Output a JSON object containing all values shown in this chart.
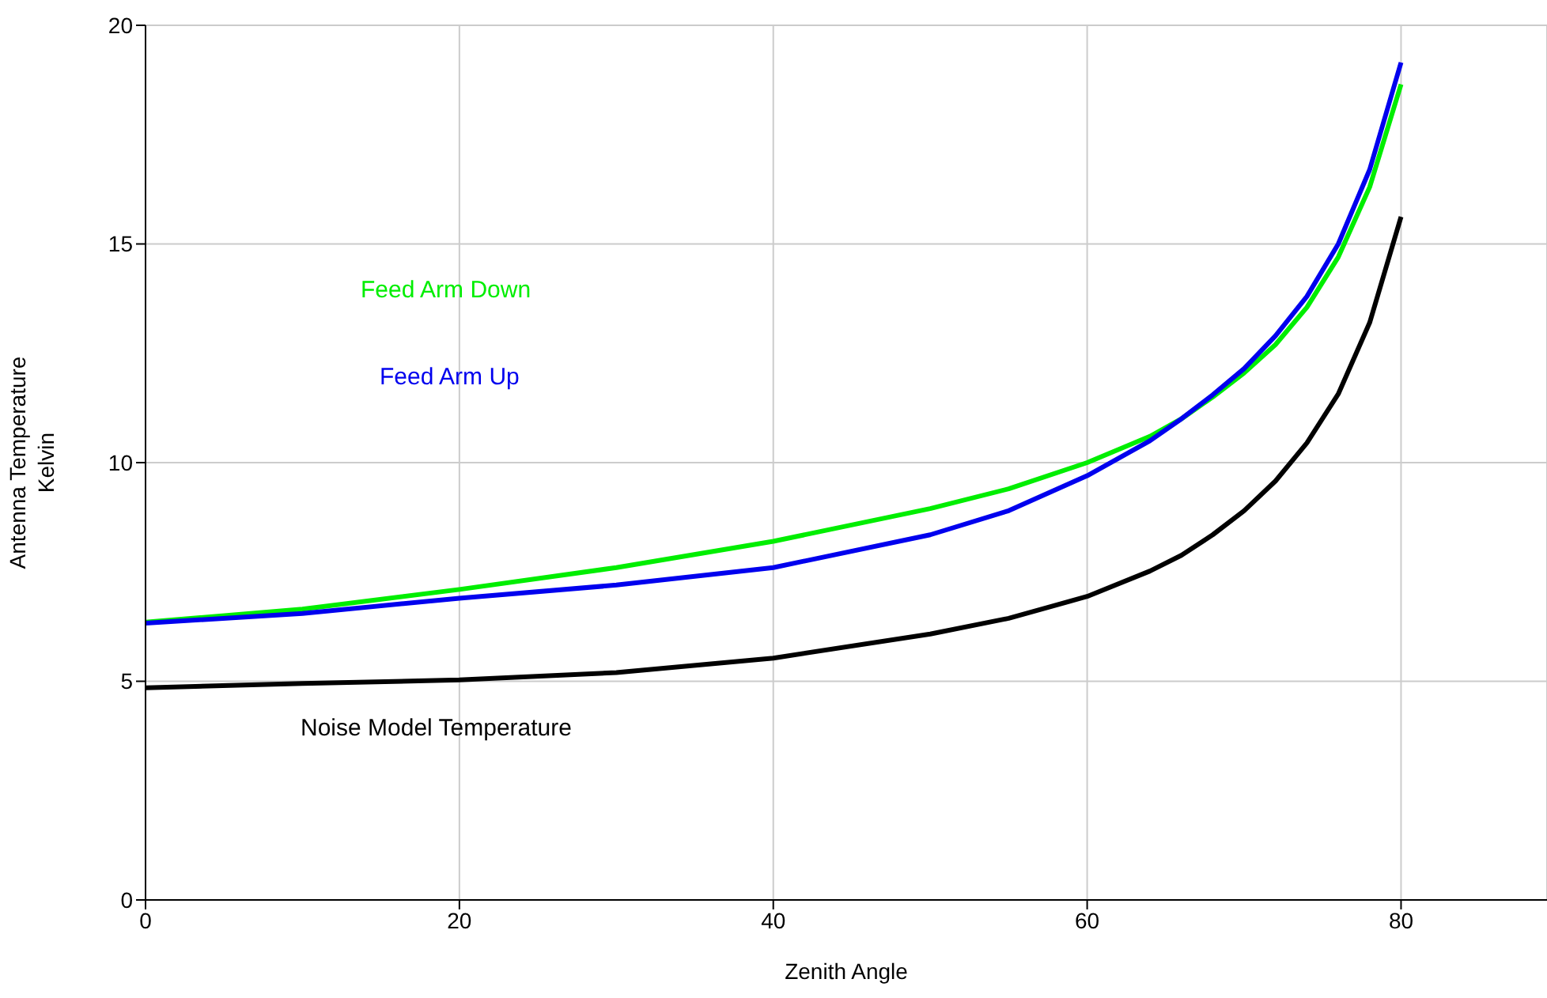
{
  "chart_data": {
    "type": "line",
    "xlabel": "Zenith Angle",
    "ylabel": "Antenna Temperature\nKelvin",
    "x": [
      0,
      10,
      20,
      30,
      40,
      50,
      55,
      60,
      64,
      66,
      68,
      70,
      72,
      74,
      76,
      78,
      80
    ],
    "xlim": [
      0,
      89.3
    ],
    "xticks": [
      0,
      20,
      40,
      60,
      80
    ],
    "ylim": [
      0,
      20
    ],
    "yticks": [
      0,
      5,
      10,
      15,
      20
    ],
    "grid": true,
    "legend": false,
    "marker": "none",
    "line_style": "solid",
    "series": [
      {
        "name": "Feed Arm Down",
        "color": "#00ee00",
        "values": [
          6.35,
          6.65,
          7.1,
          7.6,
          8.2,
          8.95,
          9.4,
          10.0,
          10.6,
          11.0,
          11.5,
          12.05,
          12.7,
          13.55,
          14.7,
          16.3,
          18.65
        ]
      },
      {
        "name": "Feed Arm Up",
        "color": "#0000ee",
        "values": [
          6.33,
          6.55,
          6.9,
          7.2,
          7.6,
          8.35,
          8.9,
          9.7,
          10.5,
          11.0,
          11.55,
          12.15,
          12.9,
          13.8,
          15.0,
          16.7,
          19.15
        ]
      },
      {
        "name": "Noise Model Temperature",
        "color": "#000000",
        "values": [
          4.85,
          4.95,
          5.03,
          5.2,
          5.53,
          6.08,
          6.44,
          6.94,
          7.52,
          7.88,
          8.35,
          8.9,
          9.58,
          10.45,
          11.57,
          13.2,
          15.62
        ]
      }
    ]
  }
}
